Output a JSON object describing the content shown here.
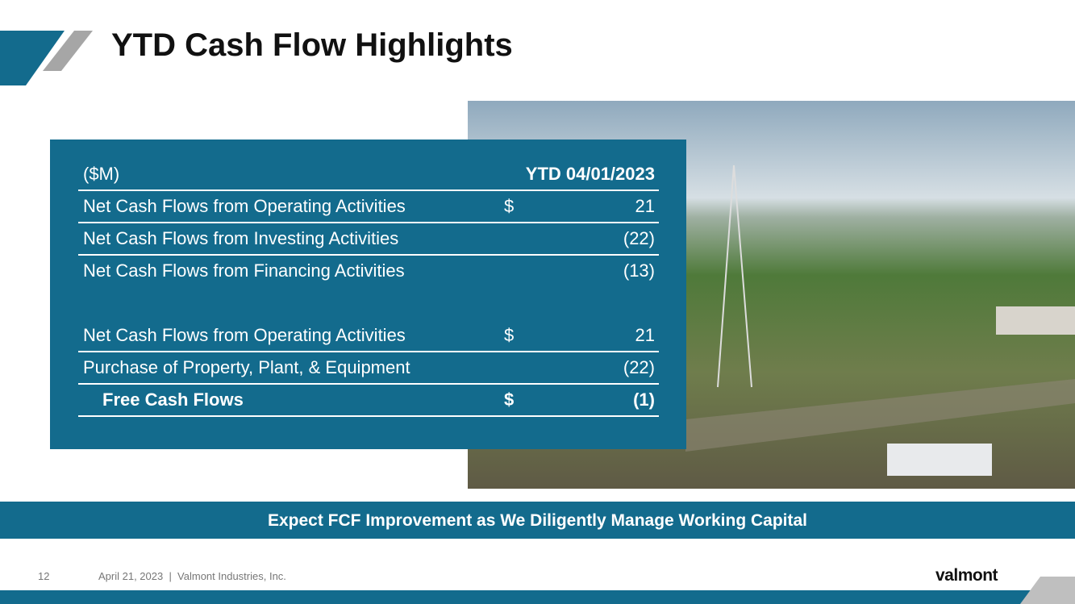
{
  "header": {
    "title": "YTD Cash Flow Highlights"
  },
  "table": {
    "unit": "($M)",
    "period": "YTD 04/01/2023",
    "sections": [
      [
        {
          "label": "Net Cash Flows from Operating Activities",
          "currency": "$",
          "value": "21"
        },
        {
          "label": "Net Cash Flows from Investing Activities",
          "value": "(22)"
        },
        {
          "label": "Net Cash Flows from Financing Activities",
          "value": "(13)"
        }
      ],
      [
        {
          "label": "Net Cash Flows from Operating Activities",
          "currency": "$",
          "value": "21"
        },
        {
          "label": "Purchase of Property, Plant, & Equipment",
          "value": "(22)"
        },
        {
          "label": "Free Cash Flows",
          "currency": "$",
          "value": "(1)",
          "bold": true
        }
      ]
    ]
  },
  "banner": "Expect FCF Improvement as We Diligently Manage Working Capital",
  "footer": {
    "page": "12",
    "text": "April 21, 2023  |  Valmont Industries, Inc.",
    "logo": "valmont"
  }
}
